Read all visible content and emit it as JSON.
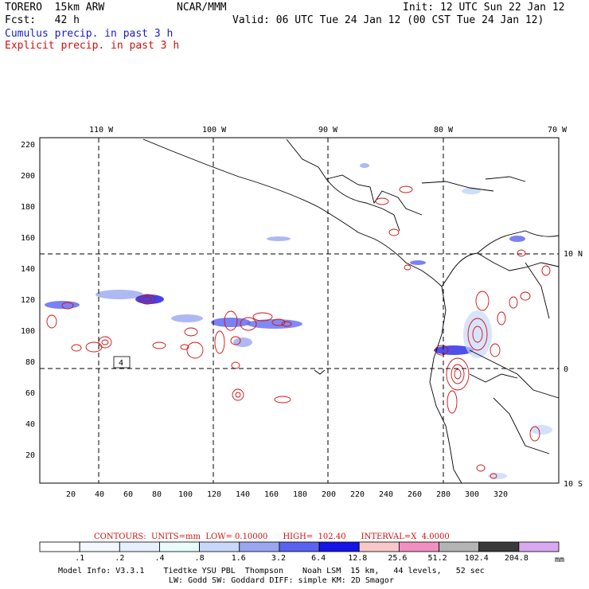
{
  "header": {
    "model": "TORERO  15km ARW",
    "org": "NCAR/MMM",
    "init": "Init: 12 UTC Sun 22 Jan 12",
    "fcst": "Fcst:   42 h",
    "valid": "Valid: 06 UTC Tue 24 Jan 12 (00 CST Tue 24 Jan 12)",
    "field1": "Cumulus precip. in past 3 h",
    "field2": "Explicit precip. in past 3 h"
  },
  "map": {
    "lon_labels": [
      "110 W",
      "100 W",
      "90 W",
      "80 W",
      "70 W"
    ],
    "lat_labels": [
      "10 N",
      "0",
      "10 S"
    ],
    "y_ticks": [
      "220",
      "200",
      "180",
      "160",
      "140",
      "120",
      "100",
      "80",
      "60",
      "40",
      "20"
    ],
    "x_ticks": [
      "20",
      "40",
      "60",
      "80",
      "100",
      "120",
      "140",
      "160",
      "180",
      "200",
      "220",
      "240",
      "260",
      "280",
      "300",
      "320"
    ],
    "inset_label": "4"
  },
  "contour_info": {
    "text": "CONTOURS:  UNITS=mm  LOW= 0.10000      HIGH=  102.40      INTERVAL=X  4.0000"
  },
  "colorbar": {
    "labels": [
      ".1",
      ".2",
      ".4",
      ".8",
      "1.6",
      "3.2",
      "6.4",
      "12.8",
      "25.6",
      "51.2",
      "102.4",
      "204.8"
    ],
    "unit": "mm",
    "colors": [
      "#ffffff",
      "#f4f8ff",
      "#e6f0ff",
      "#e8fcfc",
      "#c8d8fa",
      "#9aa6f0",
      "#5a62f0",
      "#1414e6",
      "#f8c8c8",
      "#f090c0",
      "#b4b4b4",
      "#3a3a3a",
      "#d8a8f0"
    ]
  },
  "footer": {
    "line1": "Model Info: V3.3.1    Tiedtke YSU PBL  Thompson    Noah LSM  15 km,   44 levels,   52 sec",
    "line2": "LW: Godd SW: Goddard DIFF: simple KM: 2D Smagor"
  },
  "colors": {
    "grid": "#000000",
    "coast": "#000000",
    "explicit": "#d01010",
    "cumulus": "#3a3ae0"
  }
}
